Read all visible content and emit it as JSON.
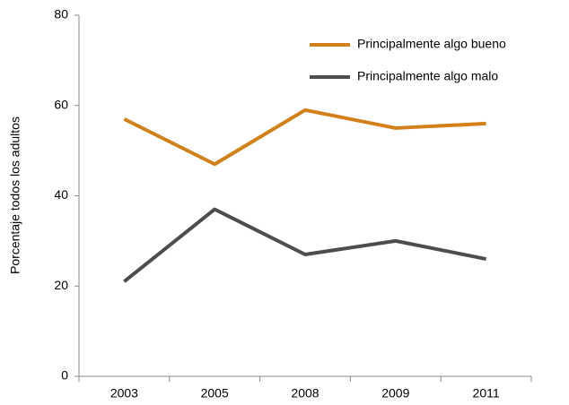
{
  "chart_data": {
    "type": "line",
    "y_label": "Porcentaje todos los adultos",
    "categories": [
      "2003",
      "2005",
      "2008",
      "2009",
      "2011"
    ],
    "series": [
      {
        "name": "Principalmente algo bueno",
        "color": "#d3801a",
        "values": [
          57,
          47,
          59,
          55,
          56
        ]
      },
      {
        "name": "Principalmente algo malo",
        "color": "#4d4d4f",
        "values": [
          21,
          37,
          27,
          30,
          26
        ]
      }
    ],
    "ylim": [
      0,
      80
    ],
    "yticks": [
      0,
      20,
      40,
      60,
      80
    ],
    "legend": "upper right"
  }
}
